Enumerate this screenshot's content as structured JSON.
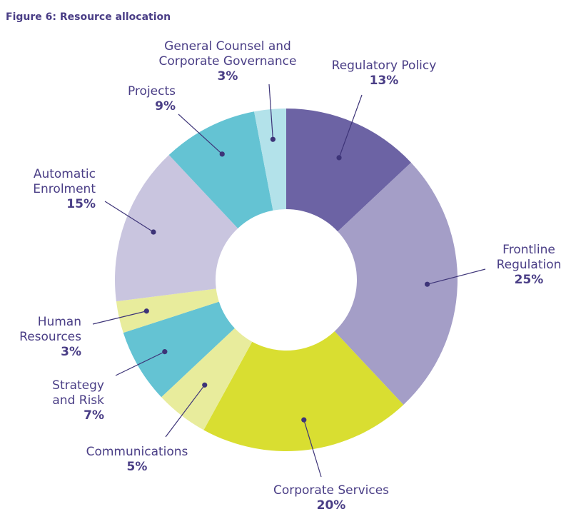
{
  "chart_data": {
    "type": "pie",
    "title": "Figure 6: Resource allocation",
    "slices": [
      {
        "name": "Regulatory Policy",
        "value": 13,
        "label": "13%",
        "color": "#6c63a4"
      },
      {
        "name": "Frontline Regulation",
        "value": 25,
        "label": "25%",
        "color": "#a49ec7"
      },
      {
        "name": "Corporate Services",
        "value": 20,
        "label": "20%",
        "color": "#d9de31"
      },
      {
        "name": "Communications",
        "value": 5,
        "label": "5%",
        "color": "#e8ec9c"
      },
      {
        "name": "Strategy and Risk",
        "value": 7,
        "label": "7%",
        "color": "#64c3d3"
      },
      {
        "name": "Human Resources",
        "value": 3,
        "label": "3%",
        "color": "#e8ec9c"
      },
      {
        "name": "Automatic Enrolment",
        "value": 15,
        "label": "15%",
        "color": "#c9c5df"
      },
      {
        "name": "Projects",
        "value": 9,
        "label": "9%",
        "color": "#64c3d3"
      },
      {
        "name": "General Counsel and Corporate Governance",
        "value": 3,
        "label": "3%",
        "color": "#b3e2ea"
      }
    ],
    "label_names": [
      "Regulatory Policy",
      "Frontline\nRegulation",
      "Corporate Services",
      "Communications",
      "Strategy\nand Risk",
      "Human\nResources",
      "Automatic\nEnrolment",
      "Projects",
      "General Counsel and\nCorporate Governance"
    ],
    "colors": {
      "text": "#4a3e86",
      "leader": "#3d3478"
    }
  }
}
